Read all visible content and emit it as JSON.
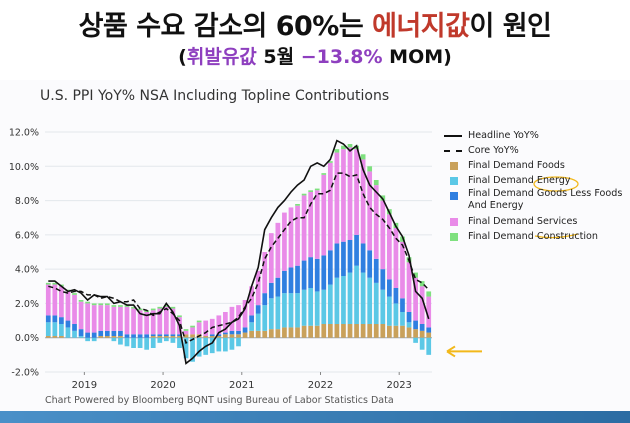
{
  "headline": {
    "before": "상품 수요 감소의 60%는 ",
    "highlight": "에너지값",
    "after": "이 원인"
  },
  "subline": {
    "open": "(",
    "label": "휘발유값",
    "mid": " 5월 ",
    "value": "−13.8%",
    "unit": " MOM)"
  },
  "colors": {
    "foods": "#c9a15b",
    "energy": "#5bc8e6",
    "goods": "#2f7fe0",
    "services": "#e98be8",
    "construction": "#7fe07f",
    "arrow": "#f2b81a"
  },
  "footer": "Chart Powered by Bloomberg BQNT using Bureau of Labor Statistics Data",
  "chart_data": {
    "type": "bar",
    "title": "U.S. PPI YoY% NSA Including Topline Contributions",
    "xlabel": "",
    "ylabel": "",
    "ylim": [
      -2.0,
      12.0
    ],
    "yticks": [
      "12.0%",
      "10.0%",
      "8.0%",
      "6.0%",
      "4.0%",
      "2.0%",
      "0.0%",
      "-2.0%"
    ],
    "xticks": [
      {
        "label": "2019",
        "at": "2019-01"
      },
      {
        "label": "2020",
        "at": "2020-01"
      },
      {
        "label": "2021",
        "at": "2021-01"
      },
      {
        "label": "2022",
        "at": "2022-01"
      },
      {
        "label": "2023",
        "at": "2023-01"
      }
    ],
    "x": [
      "2018-07",
      "2018-08",
      "2018-09",
      "2018-10",
      "2018-11",
      "2018-12",
      "2019-01",
      "2019-02",
      "2019-03",
      "2019-04",
      "2019-05",
      "2019-06",
      "2019-07",
      "2019-08",
      "2019-09",
      "2019-10",
      "2019-11",
      "2019-12",
      "2020-01",
      "2020-02",
      "2020-03",
      "2020-04",
      "2020-05",
      "2020-06",
      "2020-07",
      "2020-08",
      "2020-09",
      "2020-10",
      "2020-11",
      "2020-12",
      "2021-01",
      "2021-02",
      "2021-03",
      "2021-04",
      "2021-05",
      "2021-06",
      "2021-07",
      "2021-08",
      "2021-09",
      "2021-10",
      "2021-11",
      "2021-12",
      "2022-01",
      "2022-02",
      "2022-03",
      "2022-04",
      "2022-05",
      "2022-06",
      "2022-07",
      "2022-08",
      "2022-09",
      "2022-10",
      "2022-11",
      "2022-12",
      "2023-01",
      "2023-02",
      "2023-03",
      "2023-04",
      "2023-05"
    ],
    "series": [
      {
        "name": "Final Demand Foods",
        "values": [
          0.1,
          0.1,
          0.1,
          0.0,
          0.0,
          0.0,
          0.0,
          0.0,
          0.1,
          0.1,
          0.1,
          0.1,
          0.0,
          0.0,
          0.0,
          0.0,
          0.1,
          0.1,
          0.1,
          0.1,
          0.1,
          0.2,
          0.2,
          0.2,
          0.1,
          0.1,
          0.1,
          0.2,
          0.2,
          0.2,
          0.3,
          0.4,
          0.4,
          0.4,
          0.5,
          0.5,
          0.6,
          0.6,
          0.6,
          0.7,
          0.7,
          0.7,
          0.8,
          0.8,
          0.8,
          0.8,
          0.8,
          0.8,
          0.8,
          0.8,
          0.8,
          0.8,
          0.7,
          0.7,
          0.7,
          0.6,
          0.5,
          0.4,
          0.3
        ]
      },
      {
        "name": "Final Demand Energy",
        "values": [
          0.8,
          0.8,
          0.7,
          0.6,
          0.4,
          0.1,
          -0.2,
          -0.2,
          0.0,
          0.0,
          -0.2,
          -0.4,
          -0.5,
          -0.6,
          -0.6,
          -0.7,
          -0.6,
          -0.3,
          -0.2,
          -0.3,
          -0.6,
          -1.2,
          -1.4,
          -1.1,
          -1.0,
          -0.9,
          -0.8,
          -0.8,
          -0.7,
          -0.5,
          0.0,
          0.5,
          1.0,
          1.5,
          1.8,
          1.9,
          2.0,
          2.0,
          2.0,
          2.1,
          2.2,
          2.0,
          2.0,
          2.3,
          2.7,
          2.8,
          3.0,
          3.4,
          3.0,
          2.7,
          2.4,
          2.0,
          1.7,
          1.3,
          0.8,
          0.3,
          -0.3,
          -0.7,
          -1.0
        ]
      },
      {
        "name": "Final Demand Goods Less Foods And Energy",
        "values": [
          0.4,
          0.4,
          0.4,
          0.4,
          0.4,
          0.4,
          0.3,
          0.3,
          0.3,
          0.3,
          0.3,
          0.3,
          0.2,
          0.2,
          0.2,
          0.2,
          0.1,
          0.1,
          0.1,
          0.1,
          0.1,
          0.0,
          0.0,
          0.0,
          0.0,
          0.1,
          0.1,
          0.1,
          0.2,
          0.2,
          0.3,
          0.4,
          0.5,
          0.7,
          0.9,
          1.1,
          1.3,
          1.5,
          1.6,
          1.7,
          1.8,
          1.9,
          2.0,
          2.0,
          2.0,
          2.0,
          1.9,
          1.8,
          1.7,
          1.6,
          1.4,
          1.2,
          1.0,
          0.9,
          0.8,
          0.6,
          0.5,
          0.4,
          0.3
        ]
      },
      {
        "name": "Final Demand Services",
        "values": [
          1.8,
          1.8,
          1.8,
          1.7,
          1.7,
          1.6,
          1.7,
          1.6,
          1.5,
          1.5,
          1.4,
          1.4,
          1.6,
          1.5,
          1.4,
          1.3,
          1.4,
          1.5,
          1.6,
          1.5,
          1.0,
          0.2,
          0.4,
          0.7,
          0.9,
          0.9,
          1.1,
          1.2,
          1.4,
          1.5,
          1.6,
          1.7,
          2.0,
          2.4,
          2.9,
          3.2,
          3.4,
          3.5,
          3.5,
          3.8,
          3.8,
          4.0,
          4.7,
          5.1,
          5.3,
          5.4,
          5.4,
          5.0,
          4.9,
          4.6,
          4.3,
          4.0,
          3.8,
          3.5,
          3.3,
          2.9,
          2.5,
          2.2,
          1.8
        ]
      },
      {
        "name": "Final Demand Construction",
        "values": [
          0.1,
          0.1,
          0.1,
          0.1,
          0.1,
          0.1,
          0.1,
          0.1,
          0.1,
          0.1,
          0.1,
          0.1,
          0.1,
          0.1,
          0.1,
          0.1,
          0.1,
          0.1,
          0.1,
          0.1,
          0.1,
          0.1,
          0.1,
          0.1,
          0.0,
          0.0,
          0.0,
          0.0,
          0.0,
          0.0,
          0.0,
          0.0,
          0.0,
          0.0,
          0.0,
          0.0,
          0.0,
          0.0,
          0.1,
          0.1,
          0.1,
          0.1,
          0.1,
          0.1,
          0.2,
          0.2,
          0.2,
          0.2,
          0.3,
          0.3,
          0.3,
          0.3,
          0.3,
          0.3,
          0.3,
          0.3,
          0.3,
          0.3,
          0.3
        ]
      },
      {
        "name": "Headline YoY%",
        "kind": "line",
        "values": [
          3.3,
          3.3,
          3.0,
          2.7,
          2.8,
          2.6,
          2.2,
          2.5,
          2.4,
          2.4,
          2.0,
          2.1,
          1.9,
          1.9,
          1.4,
          1.3,
          1.4,
          1.4,
          2.0,
          1.5,
          0.7,
          -1.5,
          -1.2,
          -0.8,
          -0.5,
          -0.3,
          0.3,
          0.5,
          0.9,
          1.1,
          1.7,
          3.0,
          4.1,
          6.3,
          7.0,
          7.6,
          8.0,
          8.5,
          8.9,
          9.2,
          10.0,
          10.2,
          10.0,
          10.4,
          11.5,
          11.3,
          10.9,
          11.2,
          9.8,
          8.9,
          8.5,
          8.1,
          7.3,
          6.5,
          5.9,
          4.8,
          2.7,
          2.3,
          1.1
        ]
      },
      {
        "name": "Core YoY%",
        "kind": "dashed",
        "values": [
          3.0,
          2.9,
          2.7,
          2.6,
          2.7,
          2.7,
          2.5,
          2.5,
          2.3,
          2.4,
          2.3,
          2.1,
          2.1,
          2.2,
          1.7,
          1.6,
          1.3,
          1.5,
          1.7,
          1.4,
          1.0,
          -0.3,
          -0.1,
          0.1,
          0.3,
          0.6,
          0.7,
          0.8,
          0.9,
          1.2,
          1.8,
          2.3,
          3.2,
          4.6,
          5.3,
          5.8,
          6.3,
          6.8,
          7.0,
          7.0,
          7.8,
          8.4,
          8.4,
          8.6,
          9.6,
          9.6,
          9.4,
          9.5,
          8.4,
          7.6,
          7.2,
          6.9,
          6.4,
          5.8,
          5.4,
          4.5,
          3.4,
          3.2,
          2.8
        ]
      }
    ],
    "legend": {
      "placement": "right",
      "entries": [
        "Headline YoY%",
        "Core YoY%",
        "Final Demand Foods",
        "Final Demand Energy",
        "Final Demand Goods Less Foods And Energy",
        "Final Demand Services",
        "Final Demand Construction"
      ]
    },
    "grid": true
  }
}
